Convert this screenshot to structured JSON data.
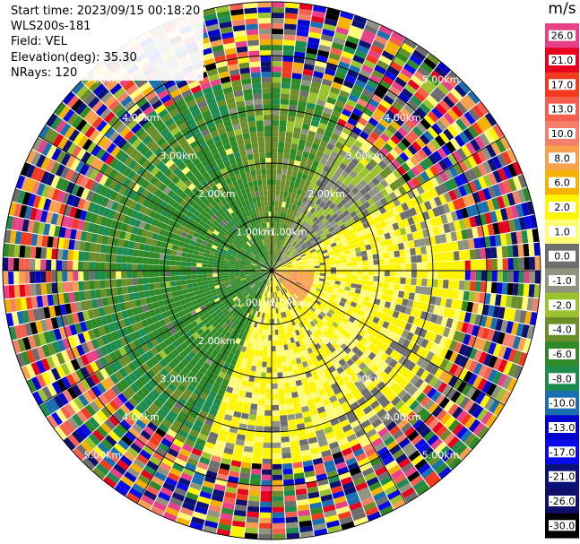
{
  "info": {
    "start_time": "Start time: 2023/09/15 00:18:20",
    "instrument": "WLS200s-181",
    "field": "Field: VEL",
    "elevation": "Elevation(deg): 35.30",
    "nrays": "NRays: 120"
  },
  "colorbar": {
    "unit": "m/s",
    "levels": [
      {
        "label": "26.0",
        "color": "#e8418a"
      },
      {
        "label": "21.0",
        "color": "#e8001e"
      },
      {
        "label": "17.0",
        "color": "#f33a1e"
      },
      {
        "label": "13.0",
        "color": "#f65f4e"
      },
      {
        "label": "10.0",
        "color": "#f5806a"
      },
      {
        "label": "8.0",
        "color": "#f7a14d"
      },
      {
        "label": "6.0",
        "color": "#f5b100"
      },
      {
        "label": "2.0",
        "color": "#fff500"
      },
      {
        "label": "1.0",
        "color": "#fffb75"
      },
      {
        "label": "0.0",
        "color": "#6e6e6e"
      },
      {
        "label": "-1.0",
        "color": "#8f9480"
      },
      {
        "label": "-2.0",
        "color": "#9ac32e"
      },
      {
        "label": "-4.0",
        "color": "#6c8e2a"
      },
      {
        "label": "-6.0",
        "color": "#2e8a26"
      },
      {
        "label": "-8.0",
        "color": "#1f8c4f"
      },
      {
        "label": "-10.0",
        "color": "#1a6fb0"
      },
      {
        "label": "-13.0",
        "color": "#0000cc"
      },
      {
        "label": "-17.0",
        "color": "#0a0ae8"
      },
      {
        "label": "-21.0",
        "color": "#0a1278"
      },
      {
        "label": "-26.0",
        "color": "#10106a"
      },
      {
        "label": "-30.0",
        "color": "#000000"
      }
    ]
  },
  "chart_data": {
    "type": "heatmap",
    "projection": "polar PPI",
    "field": "VEL",
    "units": "m/s",
    "nrays": 120,
    "range_rings_km": [
      "1.00km",
      "2.00km",
      "3.00km",
      "4.00km",
      "5.00km"
    ],
    "range_km": [
      0,
      5
    ],
    "azimuth_lines_deg": [
      0,
      30,
      60,
      90,
      120,
      150,
      180,
      210,
      240,
      270,
      300,
      330
    ],
    "regions": [
      {
        "azimuth_deg": [
          200,
          345
        ],
        "range_km": [
          0,
          3.6
        ],
        "velocity": -5,
        "note": "green sector"
      },
      {
        "azimuth_deg": [
          345,
          25
        ],
        "range_km": [
          0,
          3.6
        ],
        "velocity": -3.5
      },
      {
        "azimuth_deg": [
          25,
          80
        ],
        "range_km": [
          0,
          3.0
        ],
        "velocity": -0.5
      },
      {
        "azimuth_deg": [
          60,
          200
        ],
        "range_km": [
          0,
          3.6
        ],
        "velocity": 2,
        "note": "yellow/orange sector"
      },
      {
        "azimuth_deg": [
          90,
          140
        ],
        "range_km": [
          0,
          0.8
        ],
        "velocity": 9
      },
      {
        "azimuth_deg": [
          0,
          360
        ],
        "range_km": [
          3.6,
          5
        ],
        "velocity": "noise"
      }
    ]
  }
}
